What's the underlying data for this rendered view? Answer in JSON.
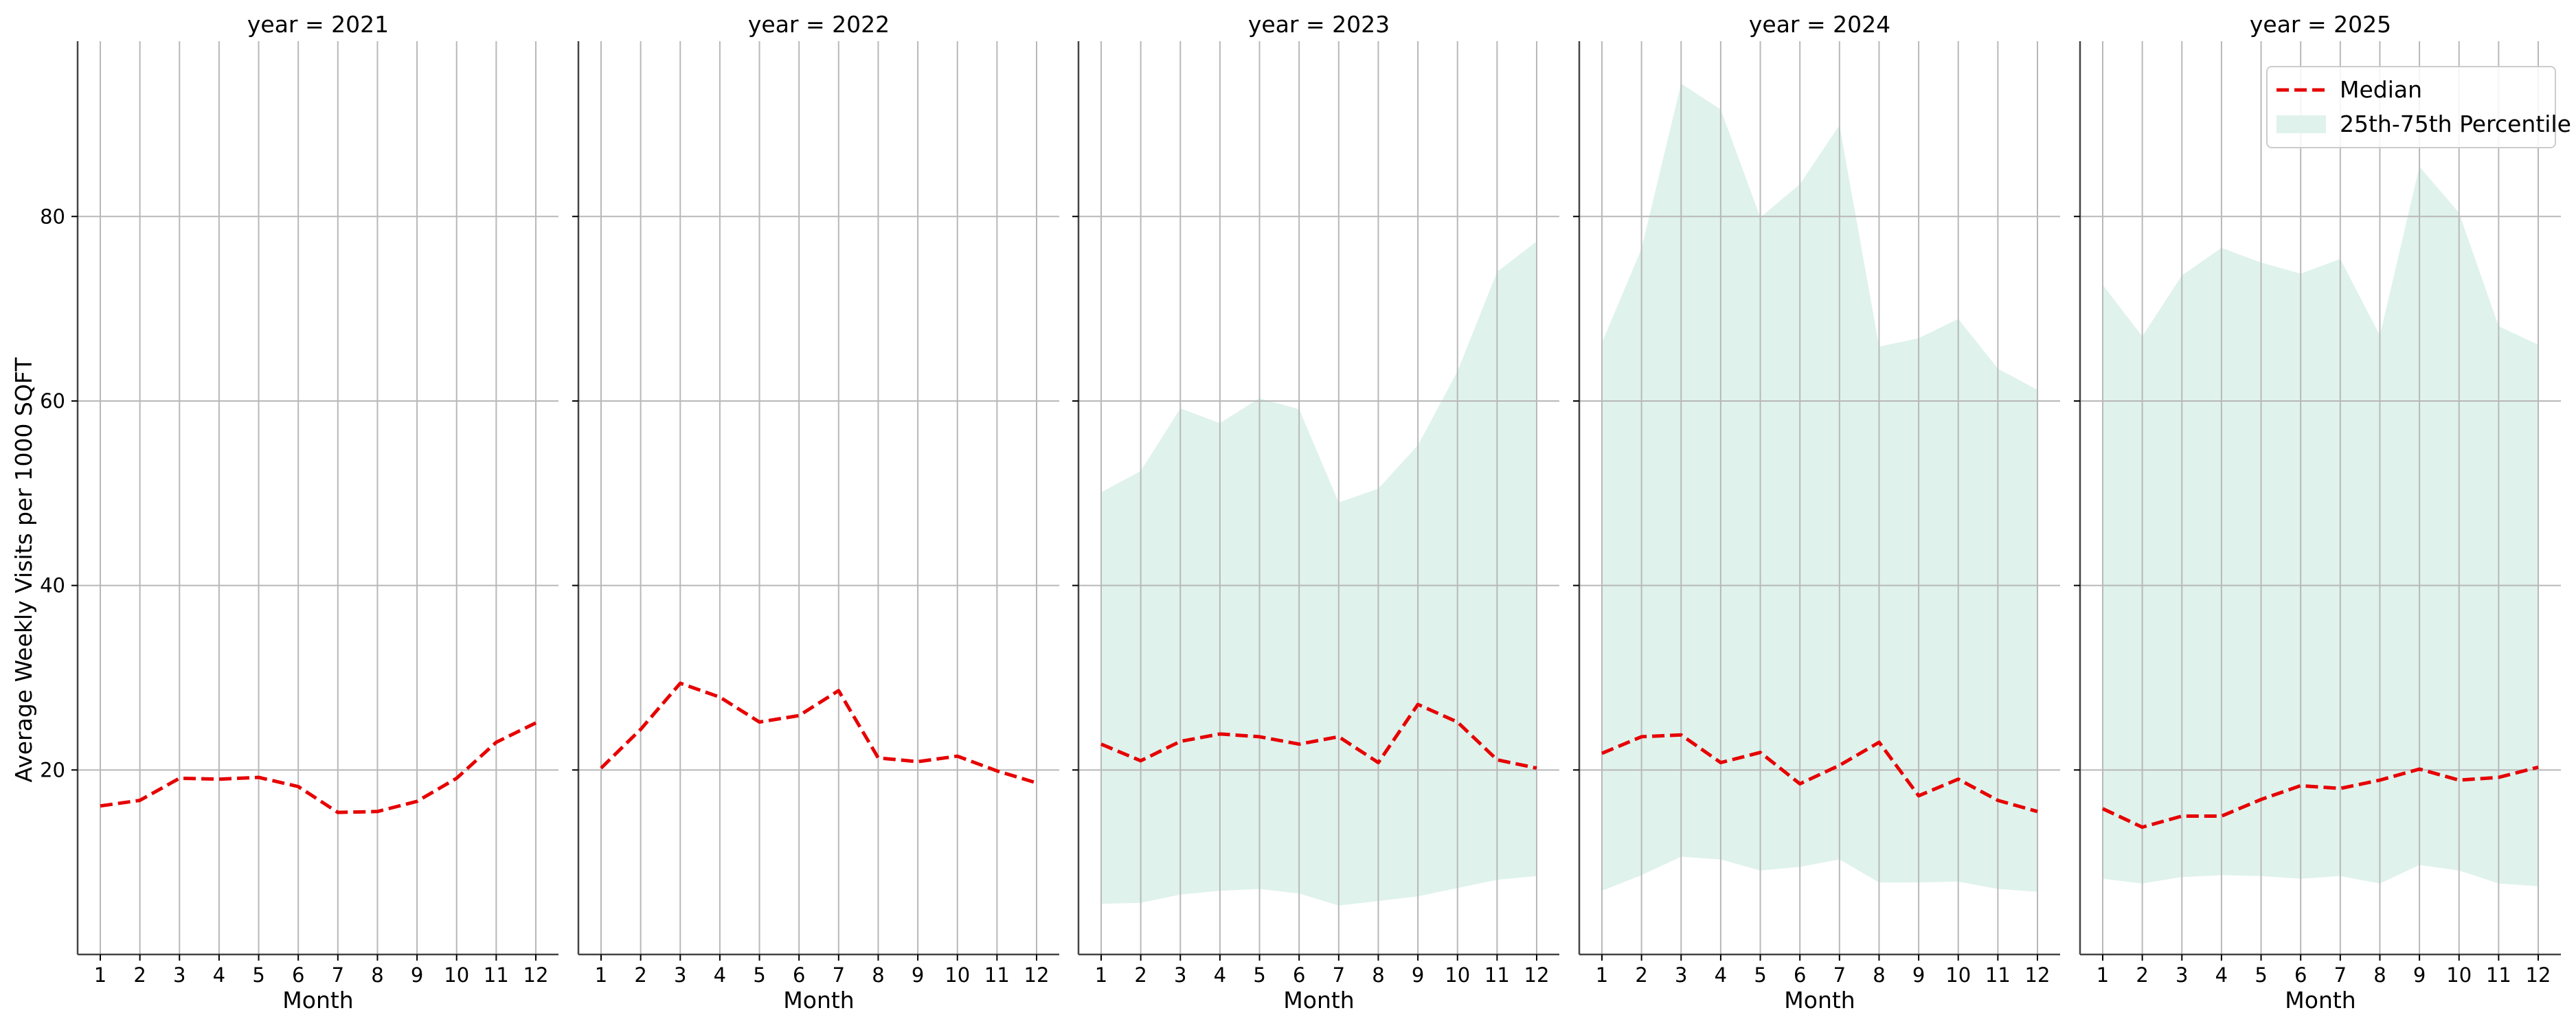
{
  "chart_data": {
    "type": "line",
    "ylabel": "Average Weekly Visits per 1000 SQFT",
    "xlabel": "Month",
    "x": [
      1,
      2,
      3,
      4,
      5,
      6,
      7,
      8,
      9,
      10,
      11,
      12
    ],
    "ylim": [
      0,
      99
    ],
    "yticks": [
      20,
      40,
      60,
      80
    ],
    "grid": true,
    "shared_y": true,
    "colors": {
      "median": "#e60000",
      "band": "#dff2ec",
      "grid": "#b8b8b8",
      "axis": "#444444"
    },
    "legend": {
      "placement": "top-right",
      "panel_index": 4,
      "entries": [
        {
          "key": "median",
          "label": "Median"
        },
        {
          "key": "band",
          "label": "25th-75th Percentile"
        }
      ]
    },
    "panels": [
      {
        "title": "year = 2021",
        "median": [
          16.1,
          16.7,
          19.1,
          19.0,
          19.2,
          18.2,
          15.4,
          15.5,
          16.6,
          19.1,
          23.0,
          25.1
        ],
        "p25": null,
        "p75": null
      },
      {
        "title": "year = 2022",
        "median": [
          20.2,
          24.4,
          29.4,
          27.9,
          25.2,
          25.9,
          28.6,
          21.3,
          20.9,
          21.5,
          19.9,
          18.6
        ],
        "p25": null,
        "p75": null
      },
      {
        "title": "year = 2023",
        "median": [
          22.8,
          21.0,
          23.1,
          23.9,
          23.6,
          22.8,
          23.6,
          20.8,
          27.1,
          25.2,
          21.1,
          20.2
        ],
        "p25": [
          5.5,
          5.6,
          6.5,
          6.9,
          7.1,
          6.6,
          5.3,
          5.8,
          6.3,
          7.2,
          8.1,
          8.5
        ],
        "p75": [
          50.1,
          52.4,
          59.2,
          57.6,
          60.3,
          59.1,
          49.0,
          50.5,
          55.2,
          63.2,
          74.0,
          77.3
        ]
      },
      {
        "title": "year = 2024",
        "median": [
          21.8,
          23.6,
          23.8,
          20.8,
          21.9,
          18.5,
          20.5,
          23.0,
          17.2,
          19.0,
          16.7,
          15.5
        ],
        "p25": [
          6.9,
          8.6,
          10.6,
          10.3,
          9.1,
          9.5,
          10.3,
          7.8,
          7.8,
          7.9,
          7.1,
          6.8
        ],
        "p75": [
          66.3,
          76.5,
          94.4,
          91.6,
          79.9,
          83.5,
          89.9,
          65.9,
          66.8,
          68.9,
          63.5,
          61.2
        ]
      },
      {
        "title": "year = 2025",
        "median": [
          15.8,
          13.8,
          15.0,
          15.0,
          16.8,
          18.3,
          18.0,
          18.9,
          20.1,
          18.9,
          19.2,
          20.3
        ],
        "p25": [
          8.2,
          7.7,
          8.4,
          8.6,
          8.5,
          8.2,
          8.5,
          7.7,
          9.7,
          9.1,
          7.7,
          7.4
        ],
        "p75": [
          72.6,
          67.0,
          73.6,
          76.6,
          75.0,
          73.8,
          75.4,
          67.1,
          85.4,
          80.4,
          68.1,
          66.1
        ]
      }
    ]
  }
}
